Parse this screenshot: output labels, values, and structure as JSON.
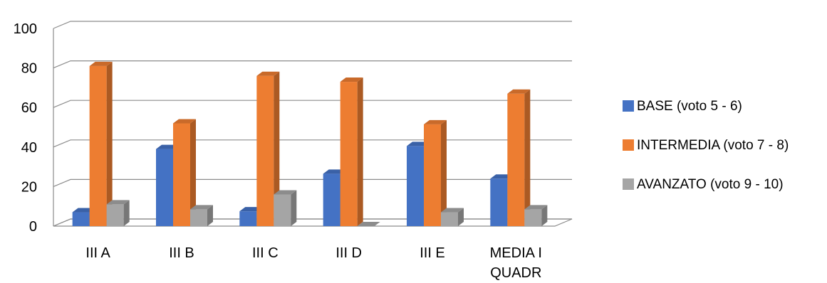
{
  "chart_data": {
    "type": "bar",
    "style": "3d-clustered-column",
    "categories": [
      [
        "III A"
      ],
      [
        "III B"
      ],
      [
        "III C"
      ],
      [
        "III D"
      ],
      [
        "III E"
      ],
      [
        "MEDIA I",
        "QUADR"
      ]
    ],
    "series": [
      {
        "name": "BASE (voto 5 - 6)",
        "color": "#4472c4",
        "values": [
          7,
          39,
          7.5,
          26.5,
          40.5,
          24
        ]
      },
      {
        "name": "INTERMEDIA (voto 7 - 8)",
        "color": "#ed7d31",
        "values": [
          81,
          52,
          76,
          73,
          51.5,
          67
        ]
      },
      {
        "name": "AVANZATO (voto 9 - 10)",
        "color": "#a5a5a5",
        "values": [
          11,
          8.5,
          16,
          0,
          7,
          8.5
        ]
      }
    ],
    "ylim": [
      0,
      100
    ],
    "yticks": [
      0,
      20,
      40,
      60,
      80,
      100
    ],
    "grid": true,
    "legend_position": "right"
  }
}
